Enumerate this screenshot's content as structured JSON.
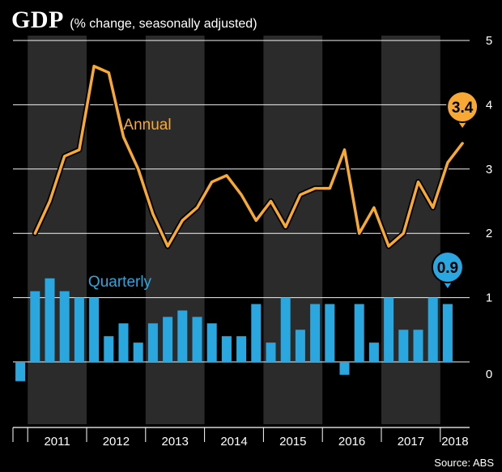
{
  "header": {
    "title": "GDP",
    "subtitle": "(% change, seasonally adjusted)"
  },
  "source": "Source: ABS",
  "colors": {
    "background": "#000000",
    "band_dark": "#2b2b2b",
    "annual_line": "#f7a934",
    "quarterly_bar": "#2aa7df",
    "gridline": "#ffffff",
    "text": "#ffffff"
  },
  "chart_data": {
    "type": "line+bar",
    "grid": true,
    "ylim": [
      -0.8,
      5.1
    ],
    "yticks": [
      0,
      1,
      2,
      3,
      4,
      5
    ],
    "year_labels": [
      "2011",
      "2012",
      "2013",
      "2014",
      "2015",
      "2016",
      "2017",
      "2018"
    ],
    "quarters": [
      "2010 Q4",
      "2011 Q1",
      "2011 Q2",
      "2011 Q3",
      "2011 Q4",
      "2012 Q1",
      "2012 Q2",
      "2012 Q3",
      "2012 Q4",
      "2013 Q1",
      "2013 Q2",
      "2013 Q3",
      "2013 Q4",
      "2014 Q1",
      "2014 Q2",
      "2014 Q3",
      "2014 Q4",
      "2015 Q1",
      "2015 Q2",
      "2015 Q3",
      "2015 Q4",
      "2016 Q1",
      "2016 Q2",
      "2016 Q3",
      "2016 Q4",
      "2017 Q1",
      "2017 Q2",
      "2017 Q3",
      "2017 Q4",
      "2018 Q1",
      "2018 Q2"
    ],
    "series": [
      {
        "name": "Annual",
        "kind": "line",
        "values": [
          2.0,
          2.5,
          3.2,
          3.3,
          4.6,
          4.5,
          3.5,
          3.0,
          2.3,
          1.8,
          2.2,
          2.4,
          2.8,
          2.9,
          2.6,
          2.2,
          2.5,
          2.1,
          2.6,
          2.7,
          2.7,
          3.3,
          2.0,
          2.4,
          1.8,
          2.0,
          2.8,
          2.4,
          3.1,
          3.4
        ],
        "start_index": 1,
        "end_label": "3.4"
      },
      {
        "name": "Quarterly",
        "kind": "bar",
        "values": [
          -0.3,
          1.1,
          1.3,
          1.1,
          1.0,
          1.0,
          0.4,
          0.6,
          0.3,
          0.6,
          0.7,
          0.8,
          0.7,
          0.6,
          0.4,
          0.4,
          0.9,
          0.3,
          1.0,
          0.5,
          0.9,
          0.9,
          -0.2,
          0.9,
          0.3,
          1.0,
          0.5,
          0.5,
          1.0,
          0.9
        ],
        "start_index": 0,
        "end_label": "0.9"
      }
    ]
  }
}
